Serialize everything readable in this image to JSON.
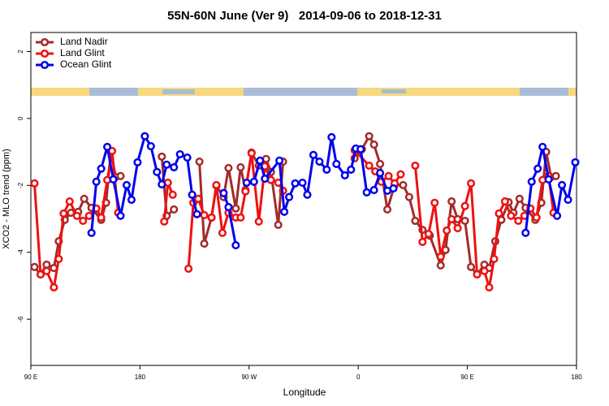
{
  "chart_data": {
    "type": "line",
    "title": "55N-60N June (Ver 9)   2014-09-06 to 2018-12-31",
    "xlabel": "Longitude",
    "ylabel": "XCO2 - MLO trend (ppm)",
    "xlim": [
      90,
      540
    ],
    "ylim": [
      -7.38,
      2.57
    ],
    "xticks": [
      {
        "value": 90,
        "label": "90 E"
      },
      180,
      {
        "value": 270,
        "label": "90 W"
      },
      {
        "value": 360,
        "label": "0"
      },
      {
        "value": 450,
        "label": "90 E"
      },
      {
        "value": 540,
        "label": "180"
      }
    ],
    "yticks": [
      2,
      0,
      -2,
      -4,
      -6
    ],
    "legend": "top-left",
    "series": [
      {
        "name": "Land Nadir",
        "color": "#a52a2a",
        "x": [
          93,
          98,
          103,
          109,
          113,
          118,
          123,
          129,
          134,
          140,
          148,
          152,
          156,
          160,
          164,
          null,
          198,
          202,
          208,
          null,
          229,
          233,
          239,
          243,
          249,
          253,
          259,
          263,
          267,
          272,
          278,
          284,
          288,
          294,
          298,
          null,
          357,
          363,
          369,
          373,
          378,
          384,
          390,
          397,
          402,
          407,
          413,
          419,
          428,
          432,
          437,
          442,
          448,
          453,
          458,
          464,
          468,
          473,
          478,
          484,
          488,
          493,
          498,
          506,
          511,
          515,
          519,
          523
        ],
        "values": [
          -4.44,
          -4.66,
          -4.37,
          -4.47,
          -3.67,
          -3.03,
          -2.82,
          -2.79,
          -2.4,
          -2.67,
          -3.03,
          -2.52,
          -1.0,
          -1.75,
          -1.72,
          null,
          -1.14,
          -2.91,
          -2.72,
          null,
          -1.29,
          -3.74,
          -2.96,
          -2.01,
          -2.35,
          -1.48,
          -2.69,
          -1.46,
          -2.14,
          -1.02,
          -1.41,
          -1.21,
          -1.6,
          -3.18,
          -1.29,
          null,
          -1.19,
          -0.92,
          -0.53,
          -0.78,
          -1.36,
          -2.72,
          -1.99,
          -1.99,
          -2.35,
          -3.06,
          -3.33,
          -3.5,
          -4.39,
          -3.93,
          -2.48,
          -3.01,
          -3.06,
          -4.44,
          -4.66,
          -4.37,
          -4.47,
          -3.67,
          -3.03,
          -2.5,
          -2.82,
          -2.4,
          -2.67,
          -3.03,
          -2.52,
          -1.0,
          -1.75,
          -1.72
        ]
      },
      {
        "name": "Land Glint",
        "color": "#ee1111",
        "x": [
          93,
          98,
          103,
          109,
          113,
          117,
          122,
          128,
          133,
          138,
          144,
          148,
          153,
          157,
          162,
          null,
          200,
          203,
          207,
          null,
          220,
          224,
          228,
          233,
          239,
          243,
          248,
          253,
          259,
          263,
          267,
          272,
          278,
          283,
          288,
          294,
          298,
          null,
          357,
          369,
          374,
          379,
          385,
          390,
          395,
          null,
          407,
          413,
          418,
          423,
          428,
          433,
          437,
          442,
          448,
          453,
          458,
          464,
          468,
          472,
          476,
          481,
          486,
          492,
          497,
          502,
          507,
          512,
          517,
          521
        ],
        "values": [
          -1.94,
          -4.66,
          -4.56,
          -5.05,
          -4.2,
          -2.84,
          -2.48,
          -2.91,
          -3.06,
          -2.91,
          -2.69,
          -2.96,
          -1.84,
          -0.97,
          -2.82,
          null,
          -3.08,
          -1.92,
          -2.28,
          null,
          -4.49,
          -2.52,
          -2.4,
          -2.89,
          -2.96,
          -1.99,
          -3.42,
          -2.82,
          -2.96,
          -2.96,
          -2.18,
          -1.04,
          -3.08,
          -1.43,
          -1.84,
          -1.92,
          -2.16,
          null,
          -0.95,
          -1.41,
          -1.58,
          -1.89,
          -1.72,
          -1.94,
          -1.67,
          null,
          -1.41,
          -3.69,
          -3.45,
          -2.52,
          -4.13,
          -3.35,
          -3.01,
          -3.28,
          -2.62,
          -1.94,
          -4.66,
          -4.56,
          -5.05,
          -4.2,
          -2.84,
          -2.48,
          -2.91,
          -3.06,
          -2.91,
          -2.69,
          -2.96,
          -1.84,
          -1.72,
          -2.82
        ]
      },
      {
        "name": "Ocean Glint",
        "color": "#0000ee",
        "x": [
          140,
          144,
          148,
          153,
          158,
          164,
          169,
          173,
          178,
          184,
          189,
          194,
          198,
          202,
          208,
          213,
          219,
          223,
          227,
          null,
          249,
          253,
          259,
          null,
          268,
          274,
          279,
          283,
          295,
          299,
          303,
          308,
          314,
          318,
          323,
          328,
          334,
          338,
          342,
          349,
          354,
          358,
          362,
          367,
          373,
          378,
          384,
          389,
          null,
          498,
          503,
          508,
          512,
          517,
          524,
          528,
          533,
          539
        ],
        "values": [
          -3.42,
          -1.89,
          -1.5,
          -0.85,
          -1.82,
          -2.91,
          -1.99,
          -2.43,
          -1.31,
          -0.53,
          -0.83,
          -1.6,
          -1.97,
          -1.38,
          -1.46,
          -1.07,
          -1.17,
          -2.28,
          -2.86,
          null,
          -2.23,
          -2.65,
          -3.79,
          null,
          -1.92,
          -1.89,
          -1.26,
          -1.8,
          -1.26,
          -2.79,
          -2.35,
          -1.94,
          -1.92,
          -2.28,
          -1.09,
          -1.29,
          -1.53,
          -0.56,
          -1.36,
          -1.7,
          -1.53,
          -0.9,
          -0.92,
          -2.21,
          -2.14,
          -1.63,
          -2.16,
          -2.09,
          null,
          -3.42,
          -1.89,
          -1.5,
          -0.85,
          -1.82,
          -2.91,
          -1.99,
          -2.43,
          -1.31
        ]
      }
    ]
  }
}
